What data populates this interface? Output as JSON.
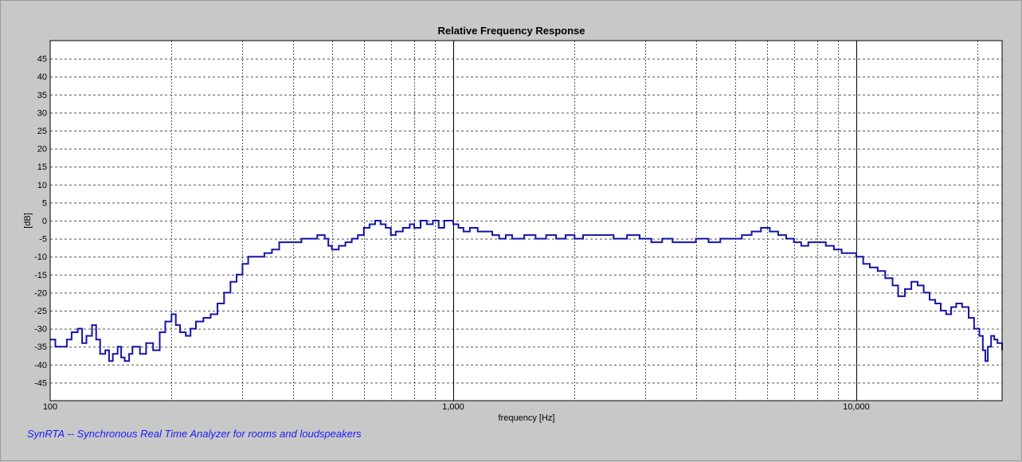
{
  "footer": {
    "text": "SynRTA -- Synchronous Real Time Analyzer for rooms and loudspeakers"
  },
  "colors": {
    "background": "#c8c8c8",
    "plot_background": "#ffffff",
    "trace": "#1414a8",
    "footer": "#1a1aff"
  },
  "chart_data": {
    "type": "line",
    "title": "Relative Frequency Response",
    "xlabel": "frequency [Hz]",
    "ylabel": "[dB]",
    "x_scale": "log",
    "xlim": [
      100,
      23000
    ],
    "ylim": [
      -50,
      50
    ],
    "grid": true,
    "x_tick_labels": [
      {
        "value": 100,
        "label": "100"
      },
      {
        "value": 1000,
        "label": "1,000"
      },
      {
        "value": 10000,
        "label": "10,000"
      }
    ],
    "y_tick_labels": [
      "45",
      "40",
      "35",
      "30",
      "25",
      "20",
      "15",
      "10",
      "5",
      "0",
      "-5",
      "-10",
      "-15",
      "-20",
      "-25",
      "-30",
      "-35",
      "-40",
      "-45"
    ],
    "y_tick_values": [
      45,
      40,
      35,
      30,
      25,
      20,
      15,
      10,
      5,
      0,
      -5,
      -10,
      -15,
      -20,
      -25,
      -30,
      -35,
      -40,
      -45
    ],
    "series": [
      {
        "step": true,
        "points": [
          [
            100,
            -33
          ],
          [
            103,
            -35
          ],
          [
            107,
            -35
          ],
          [
            110,
            -33
          ],
          [
            113,
            -31
          ],
          [
            117,
            -30
          ],
          [
            120,
            -34
          ],
          [
            123,
            -32
          ],
          [
            127,
            -29
          ],
          [
            130,
            -33
          ],
          [
            133,
            -37
          ],
          [
            137,
            -36
          ],
          [
            140,
            -39
          ],
          [
            143,
            -37
          ],
          [
            147,
            -35
          ],
          [
            150,
            -38
          ],
          [
            153,
            -39
          ],
          [
            157,
            -37
          ],
          [
            160,
            -35
          ],
          [
            167,
            -37
          ],
          [
            173,
            -34
          ],
          [
            180,
            -36
          ],
          [
            187,
            -31
          ],
          [
            193,
            -28
          ],
          [
            200,
            -26
          ],
          [
            205,
            -29
          ],
          [
            210,
            -31
          ],
          [
            217,
            -32
          ],
          [
            223,
            -30
          ],
          [
            230,
            -28
          ],
          [
            240,
            -27
          ],
          [
            250,
            -26
          ],
          [
            260,
            -23
          ],
          [
            270,
            -20
          ],
          [
            280,
            -17
          ],
          [
            290,
            -15
          ],
          [
            300,
            -12
          ],
          [
            310,
            -10
          ],
          [
            325,
            -10
          ],
          [
            340,
            -9
          ],
          [
            355,
            -8
          ],
          [
            370,
            -6
          ],
          [
            400,
            -6
          ],
          [
            420,
            -5
          ],
          [
            440,
            -5
          ],
          [
            460,
            -4
          ],
          [
            480,
            -5
          ],
          [
            490,
            -7
          ],
          [
            500,
            -8
          ],
          [
            520,
            -7
          ],
          [
            540,
            -6
          ],
          [
            560,
            -5
          ],
          [
            580,
            -4
          ],
          [
            600,
            -2
          ],
          [
            620,
            -1
          ],
          [
            640,
            0
          ],
          [
            660,
            -1
          ],
          [
            680,
            -2
          ],
          [
            700,
            -4
          ],
          [
            720,
            -3
          ],
          [
            750,
            -2
          ],
          [
            780,
            -1
          ],
          [
            800,
            -2
          ],
          [
            830,
            0
          ],
          [
            860,
            -1
          ],
          [
            890,
            0
          ],
          [
            920,
            -2
          ],
          [
            950,
            0
          ],
          [
            1000,
            -1
          ],
          [
            1030,
            -2
          ],
          [
            1060,
            -3
          ],
          [
            1100,
            -2
          ],
          [
            1150,
            -3
          ],
          [
            1200,
            -3
          ],
          [
            1250,
            -4
          ],
          [
            1300,
            -5
          ],
          [
            1350,
            -4
          ],
          [
            1400,
            -5
          ],
          [
            1500,
            -4
          ],
          [
            1600,
            -5
          ],
          [
            1700,
            -4
          ],
          [
            1800,
            -5
          ],
          [
            1900,
            -4
          ],
          [
            2000,
            -5
          ],
          [
            2100,
            -4
          ],
          [
            2300,
            -4
          ],
          [
            2500,
            -5
          ],
          [
            2700,
            -4
          ],
          [
            2900,
            -5
          ],
          [
            3100,
            -6
          ],
          [
            3300,
            -5
          ],
          [
            3500,
            -6
          ],
          [
            3700,
            -6
          ],
          [
            4000,
            -5
          ],
          [
            4300,
            -6
          ],
          [
            4600,
            -5
          ],
          [
            4900,
            -5
          ],
          [
            5200,
            -4
          ],
          [
            5500,
            -3
          ],
          [
            5800,
            -2
          ],
          [
            6100,
            -3
          ],
          [
            6400,
            -4
          ],
          [
            6700,
            -5
          ],
          [
            7000,
            -6
          ],
          [
            7300,
            -7
          ],
          [
            7600,
            -6
          ],
          [
            8000,
            -6
          ],
          [
            8400,
            -7
          ],
          [
            8800,
            -8
          ],
          [
            9200,
            -9
          ],
          [
            9600,
            -9
          ],
          [
            10000,
            -10
          ],
          [
            10400,
            -12
          ],
          [
            10800,
            -13
          ],
          [
            11300,
            -14
          ],
          [
            11800,
            -16
          ],
          [
            12300,
            -18
          ],
          [
            12700,
            -21
          ],
          [
            13200,
            -19
          ],
          [
            13700,
            -17
          ],
          [
            14200,
            -18
          ],
          [
            14700,
            -20
          ],
          [
            15200,
            -22
          ],
          [
            15700,
            -23
          ],
          [
            16200,
            -25
          ],
          [
            16700,
            -26
          ],
          [
            17200,
            -24
          ],
          [
            17700,
            -23
          ],
          [
            18300,
            -24
          ],
          [
            19000,
            -27
          ],
          [
            19600,
            -30
          ],
          [
            20200,
            -32
          ],
          [
            20600,
            -36
          ],
          [
            20900,
            -39
          ],
          [
            21200,
            -35
          ],
          [
            21600,
            -32
          ],
          [
            22000,
            -33
          ],
          [
            22400,
            -34
          ],
          [
            23000,
            -36
          ]
        ]
      }
    ]
  }
}
